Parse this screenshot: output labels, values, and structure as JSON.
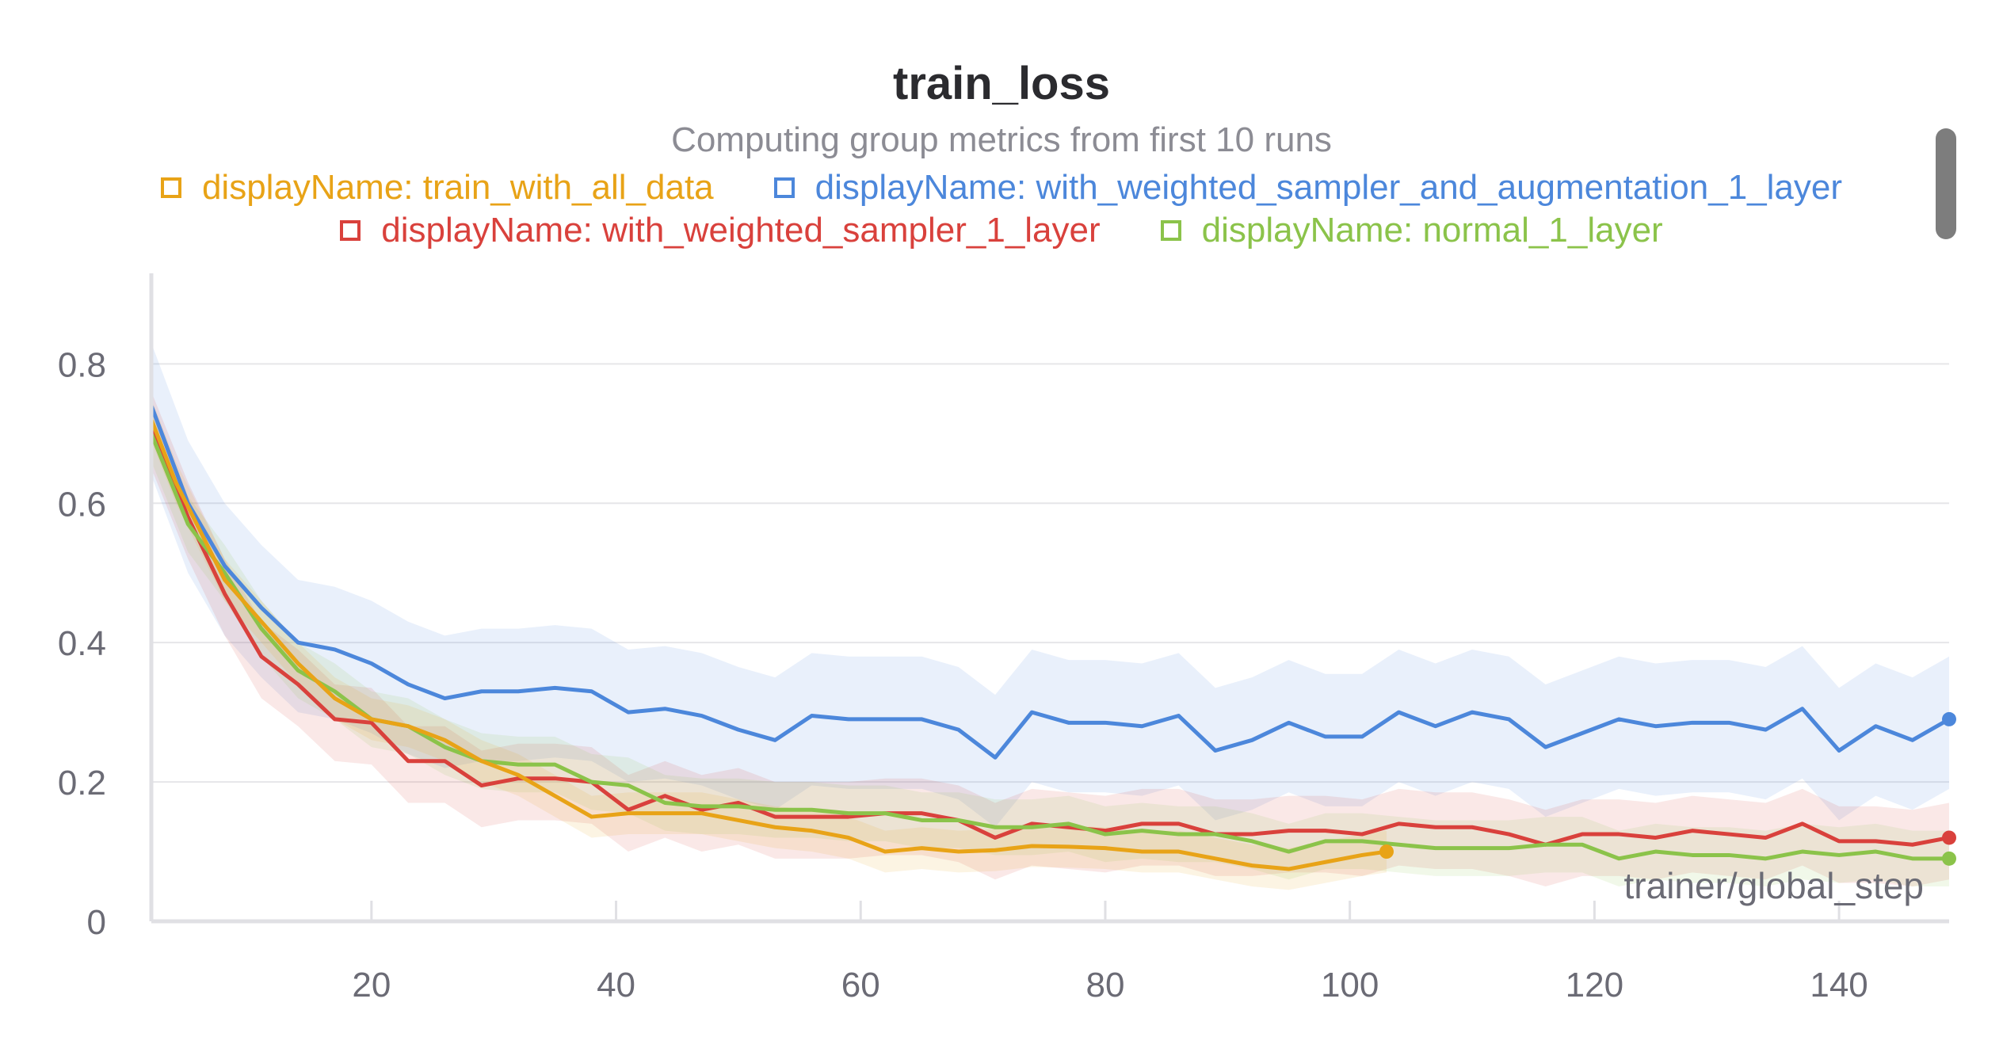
{
  "chart_data": {
    "type": "line",
    "title": "train_loss",
    "subtitle": "Computing group metrics from first 10 runs",
    "xlabel": "trainer/global_step",
    "ylabel": "",
    "xlim": [
      2,
      149
    ],
    "ylim": [
      0,
      0.93
    ],
    "x_ticks": [
      20,
      40,
      60,
      80,
      100,
      120,
      140
    ],
    "y_ticks": [
      0,
      0.2,
      0.4,
      0.6,
      0.8
    ],
    "x_tick_labels": [
      "20",
      "40",
      "60",
      "80",
      "100",
      "120",
      "140"
    ],
    "y_tick_labels": [
      "0",
      "0.2",
      "0.4",
      "0.6",
      "0.8"
    ],
    "grid": true,
    "legend_position": "top",
    "series": [
      {
        "name": "displayName: train_with_all_data",
        "color": "#e8a317",
        "band": {
          "lower_offset": 0.03,
          "upper_offset": 0.03
        },
        "x": [
          2,
          4,
          8,
          11,
          14,
          17,
          20,
          23,
          26,
          29,
          32,
          35,
          38,
          41,
          44,
          47,
          50,
          53,
          56,
          59,
          62,
          65,
          68,
          71,
          74,
          77,
          80,
          83,
          86,
          89,
          92,
          95,
          98,
          101,
          103
        ],
        "y": [
          0.72,
          0.63,
          0.49,
          0.43,
          0.37,
          0.32,
          0.29,
          0.28,
          0.26,
          0.23,
          0.21,
          0.18,
          0.15,
          0.155,
          0.155,
          0.155,
          0.145,
          0.135,
          0.13,
          0.12,
          0.1,
          0.105,
          0.1,
          0.102,
          0.108,
          0.107,
          0.105,
          0.1,
          0.1,
          0.09,
          0.08,
          0.075,
          0.085,
          0.095,
          0.1
        ]
      },
      {
        "name": "displayName: with_weighted_sampler_and_augmentation_1_layer",
        "color": "#4c87db",
        "band": {
          "lower_offset": 0.1,
          "upper_offset": 0.09
        },
        "x": [
          2,
          5,
          8,
          11,
          14,
          17,
          20,
          23,
          26,
          29,
          32,
          35,
          38,
          41,
          44,
          47,
          50,
          53,
          56,
          59,
          62,
          65,
          68,
          71,
          74,
          77,
          80,
          83,
          86,
          89,
          92,
          95,
          98,
          101,
          104,
          107,
          110,
          113,
          116,
          119,
          122,
          125,
          128,
          131,
          134,
          137,
          140,
          143,
          146,
          149
        ],
        "y": [
          0.74,
          0.6,
          0.51,
          0.45,
          0.4,
          0.39,
          0.37,
          0.34,
          0.32,
          0.33,
          0.33,
          0.335,
          0.33,
          0.3,
          0.305,
          0.295,
          0.275,
          0.26,
          0.295,
          0.29,
          0.29,
          0.29,
          0.275,
          0.235,
          0.3,
          0.285,
          0.285,
          0.28,
          0.295,
          0.245,
          0.26,
          0.285,
          0.265,
          0.265,
          0.3,
          0.28,
          0.3,
          0.29,
          0.25,
          0.27,
          0.29,
          0.28,
          0.285,
          0.285,
          0.275,
          0.305,
          0.245,
          0.28,
          0.26,
          0.29
        ]
      },
      {
        "name": "displayName: with_weighted_sampler_1_layer",
        "color": "#d9413c",
        "band": {
          "lower_offset": 0.06,
          "upper_offset": 0.05
        },
        "x": [
          2,
          5,
          8,
          11,
          14,
          17,
          20,
          23,
          26,
          29,
          32,
          35,
          38,
          41,
          44,
          47,
          50,
          53,
          56,
          59,
          62,
          65,
          68,
          71,
          74,
          77,
          80,
          83,
          86,
          89,
          92,
          95,
          98,
          101,
          104,
          107,
          110,
          113,
          116,
          119,
          122,
          125,
          128,
          131,
          134,
          137,
          140,
          143,
          146,
          149
        ],
        "y": [
          0.71,
          0.58,
          0.47,
          0.38,
          0.34,
          0.29,
          0.285,
          0.23,
          0.23,
          0.195,
          0.205,
          0.205,
          0.2,
          0.16,
          0.18,
          0.16,
          0.17,
          0.15,
          0.15,
          0.15,
          0.155,
          0.155,
          0.145,
          0.12,
          0.14,
          0.135,
          0.13,
          0.14,
          0.14,
          0.125,
          0.125,
          0.13,
          0.13,
          0.125,
          0.14,
          0.135,
          0.135,
          0.125,
          0.11,
          0.125,
          0.125,
          0.12,
          0.13,
          0.125,
          0.12,
          0.14,
          0.115,
          0.115,
          0.11,
          0.12
        ]
      },
      {
        "name": "displayName: normal_1_layer",
        "color": "#8bc34a",
        "band": {
          "lower_offset": 0.04,
          "upper_offset": 0.04
        },
        "x": [
          2,
          5,
          8,
          11,
          14,
          17,
          20,
          23,
          26,
          29,
          32,
          35,
          38,
          41,
          44,
          47,
          50,
          53,
          56,
          59,
          62,
          65,
          68,
          71,
          74,
          77,
          80,
          83,
          86,
          89,
          92,
          95,
          98,
          101,
          104,
          107,
          110,
          113,
          116,
          119,
          122,
          125,
          128,
          131,
          134,
          137,
          140,
          143,
          146,
          149
        ],
        "y": [
          0.7,
          0.57,
          0.5,
          0.42,
          0.36,
          0.33,
          0.29,
          0.28,
          0.25,
          0.23,
          0.225,
          0.225,
          0.2,
          0.195,
          0.17,
          0.165,
          0.165,
          0.16,
          0.16,
          0.155,
          0.155,
          0.145,
          0.145,
          0.135,
          0.135,
          0.14,
          0.125,
          0.13,
          0.125,
          0.125,
          0.115,
          0.1,
          0.115,
          0.115,
          0.11,
          0.105,
          0.105,
          0.105,
          0.11,
          0.11,
          0.09,
          0.1,
          0.095,
          0.095,
          0.09,
          0.1,
          0.095,
          0.1,
          0.09,
          0.09
        ]
      }
    ]
  },
  "legend_marker_style": "hollow-square"
}
